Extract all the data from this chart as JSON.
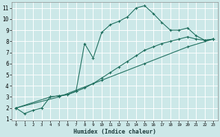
{
  "xlabel": "Humidex (Indice chaleur)",
  "background_color": "#cce8e8",
  "grid_color": "#e8f5f5",
  "line_color": "#1a6b5a",
  "xlim": [
    -0.5,
    23.5
  ],
  "ylim": [
    1,
    11.5
  ],
  "xticks": [
    0,
    1,
    2,
    3,
    4,
    5,
    6,
    7,
    8,
    9,
    10,
    11,
    12,
    13,
    14,
    15,
    16,
    17,
    18,
    19,
    20,
    21,
    22,
    23
  ],
  "yticks": [
    1,
    2,
    3,
    4,
    5,
    6,
    7,
    8,
    9,
    10,
    11
  ],
  "series1": [
    [
      0,
      2.0
    ],
    [
      1,
      1.5
    ],
    [
      2,
      1.8
    ],
    [
      3,
      2.0
    ],
    [
      4,
      3.0
    ],
    [
      5,
      3.1
    ],
    [
      6,
      3.2
    ],
    [
      7,
      3.5
    ],
    [
      8,
      7.8
    ],
    [
      9,
      6.5
    ],
    [
      10,
      8.8
    ],
    [
      11,
      9.5
    ],
    [
      12,
      9.8
    ],
    [
      13,
      10.2
    ],
    [
      14,
      11.0
    ],
    [
      15,
      11.2
    ],
    [
      16,
      10.5
    ],
    [
      17,
      9.7
    ],
    [
      18,
      9.0
    ],
    [
      19,
      9.0
    ],
    [
      20,
      9.2
    ],
    [
      21,
      8.5
    ],
    [
      22,
      8.1
    ],
    [
      23,
      8.2
    ]
  ],
  "series2": [
    [
      0,
      2.0
    ],
    [
      4,
      3.0
    ],
    [
      5,
      3.1
    ],
    [
      6,
      3.2
    ],
    [
      7,
      3.5
    ],
    [
      8,
      3.8
    ],
    [
      9,
      4.2
    ],
    [
      10,
      4.7
    ],
    [
      11,
      5.2
    ],
    [
      12,
      5.7
    ],
    [
      13,
      6.2
    ],
    [
      14,
      6.7
    ],
    [
      15,
      7.2
    ],
    [
      16,
      7.5
    ],
    [
      17,
      7.8
    ],
    [
      18,
      8.0
    ],
    [
      19,
      8.2
    ],
    [
      20,
      8.4
    ],
    [
      21,
      8.2
    ],
    [
      22,
      8.1
    ],
    [
      23,
      8.2
    ]
  ],
  "series3": [
    [
      0,
      2.0
    ],
    [
      5,
      3.0
    ],
    [
      10,
      4.5
    ],
    [
      15,
      6.0
    ],
    [
      20,
      7.5
    ],
    [
      23,
      8.2
    ]
  ]
}
